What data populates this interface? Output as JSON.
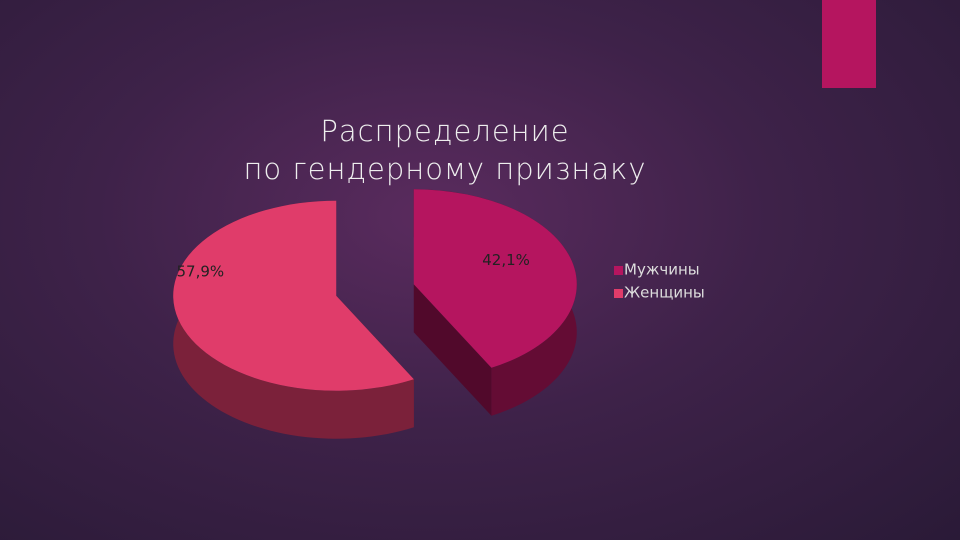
{
  "chart_data": {
    "type": "pie3d",
    "title": "Распределение\nпо гендерному признаку",
    "categories": [
      "Мужчины",
      "Женщины"
    ],
    "values": [
      42.1,
      57.9
    ],
    "value_labels": [
      "42,1%",
      "57,9%"
    ],
    "colors": [
      "#b5155f",
      "#e03c6a"
    ],
    "legend": "right"
  }
}
